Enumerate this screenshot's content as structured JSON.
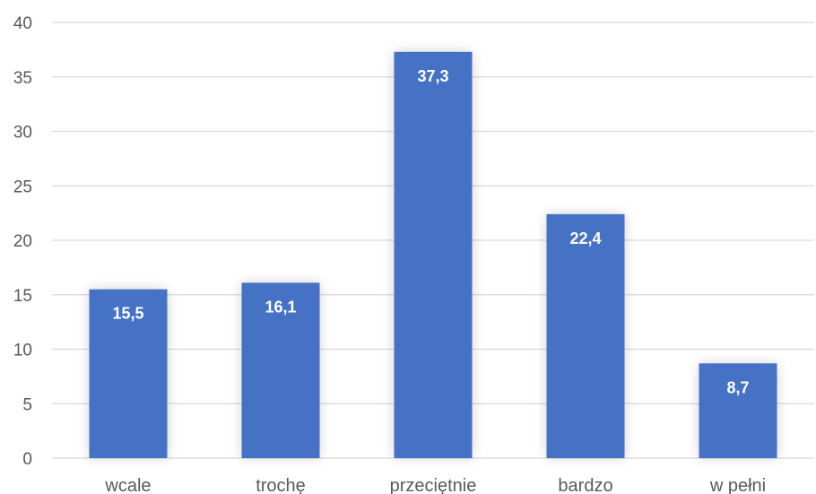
{
  "chart_data": {
    "type": "bar",
    "title": "",
    "xlabel": "",
    "ylabel": "",
    "categories": [
      "wcale",
      "trochę",
      "przeciętnie",
      "bardzo",
      "w pełni"
    ],
    "values": [
      15.5,
      16.1,
      37.3,
      22.4,
      8.7
    ],
    "value_labels": [
      "15,5",
      "16,1",
      "37,3",
      "22,4",
      "8,7"
    ],
    "ylim": [
      0,
      40
    ],
    "y_ticks": [
      0,
      5,
      10,
      15,
      20,
      25,
      30,
      35,
      40
    ],
    "grid": true,
    "legend": "none",
    "colors": {
      "bar": "#4472C4",
      "grid": "#D9D9D9",
      "axis_text": "#595959",
      "data_label": "#FFFFFF"
    }
  }
}
